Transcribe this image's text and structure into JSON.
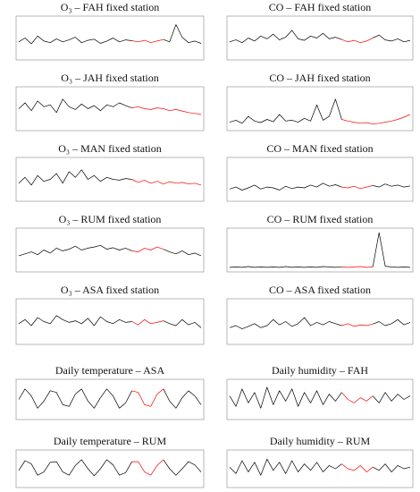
{
  "chart_data": [
    {
      "type": "line",
      "title": "O₃ – FAH fixed station",
      "ylim": [
        0,
        100
      ],
      "series": [
        {
          "color": "#000000",
          "values": [
            40,
            50,
            35,
            55,
            42,
            38,
            48,
            40,
            45,
            52,
            38,
            44,
            47,
            36,
            42,
            50,
            40,
            45,
            43,
            null,
            null,
            null,
            null,
            46,
            40,
            85,
            52,
            38,
            42,
            36
          ]
        },
        {
          "color": "#ff0000",
          "values": [
            null,
            null,
            null,
            null,
            null,
            null,
            null,
            null,
            null,
            null,
            null,
            null,
            null,
            null,
            null,
            null,
            null,
            null,
            43,
            40,
            44,
            38,
            42,
            46,
            null,
            null,
            null,
            null,
            null,
            null
          ]
        }
      ]
    },
    {
      "type": "line",
      "title": "CO – FAH fixed station",
      "ylim": [
        0,
        100
      ],
      "series": [
        {
          "color": "#000000",
          "values": [
            40,
            45,
            38,
            50,
            42,
            55,
            48,
            60,
            45,
            52,
            70,
            48,
            44,
            55,
            50,
            62,
            48,
            52,
            46,
            null,
            null,
            null,
            null,
            50,
            58,
            45,
            42,
            48,
            40,
            44
          ]
        },
        {
          "color": "#ff0000",
          "values": [
            null,
            null,
            null,
            null,
            null,
            null,
            null,
            null,
            null,
            null,
            null,
            null,
            null,
            null,
            null,
            null,
            null,
            null,
            46,
            40,
            44,
            38,
            42,
            50,
            null,
            null,
            null,
            null,
            null,
            null
          ]
        }
      ]
    },
    {
      "type": "line",
      "title": "O₃ – JAH fixed station",
      "ylim": [
        0,
        100
      ],
      "series": [
        {
          "color": "#000000",
          "values": [
            50,
            65,
            45,
            70,
            55,
            60,
            40,
            75,
            55,
            48,
            62,
            50,
            58,
            45,
            60,
            55,
            65,
            58,
            52,
            null,
            null,
            null,
            null,
            null,
            null,
            null,
            null,
            null,
            null,
            null
          ]
        },
        {
          "color": "#ff0000",
          "values": [
            null,
            null,
            null,
            null,
            null,
            null,
            null,
            null,
            null,
            null,
            null,
            null,
            null,
            null,
            null,
            null,
            null,
            null,
            52,
            55,
            50,
            48,
            52,
            50,
            45,
            48,
            44,
            40,
            38,
            35
          ]
        }
      ]
    },
    {
      "type": "line",
      "title": "CO – JAH fixed station",
      "ylim": [
        0,
        100
      ],
      "series": [
        {
          "color": "#000000",
          "values": [
            15,
            20,
            12,
            30,
            18,
            14,
            22,
            16,
            35,
            18,
            20,
            15,
            25,
            18,
            60,
            20,
            30,
            75,
            22,
            null,
            null,
            null,
            null,
            null,
            null,
            null,
            null,
            null,
            null,
            null
          ]
        },
        {
          "color": "#ff0000",
          "values": [
            null,
            null,
            null,
            null,
            null,
            null,
            null,
            null,
            null,
            null,
            null,
            null,
            null,
            null,
            null,
            null,
            null,
            null,
            22,
            18,
            15,
            12,
            14,
            10,
            12,
            15,
            18,
            22,
            28,
            35
          ]
        }
      ]
    },
    {
      "type": "line",
      "title": "O₃ – MAN fixed station",
      "ylim": [
        0,
        100
      ],
      "series": [
        {
          "color": "#000000",
          "values": [
            40,
            55,
            35,
            60,
            45,
            50,
            65,
            40,
            70,
            55,
            75,
            50,
            60,
            45,
            55,
            50,
            48,
            52,
            50,
            null,
            null,
            null,
            null,
            null,
            null,
            null,
            null,
            null,
            null,
            null
          ]
        },
        {
          "color": "#ff0000",
          "values": [
            null,
            null,
            null,
            null,
            null,
            null,
            null,
            null,
            null,
            null,
            null,
            null,
            null,
            null,
            null,
            null,
            null,
            null,
            50,
            42,
            48,
            40,
            45,
            38,
            44,
            40,
            42,
            38,
            40,
            35
          ]
        }
      ]
    },
    {
      "type": "line",
      "title": "CO – MAN fixed station",
      "ylim": [
        0,
        100
      ],
      "series": [
        {
          "color": "#000000",
          "values": [
            25,
            30,
            22,
            28,
            35,
            25,
            30,
            28,
            22,
            32,
            26,
            30,
            28,
            35,
            30,
            40,
            32,
            36,
            30,
            null,
            null,
            null,
            null,
            34,
            30,
            38,
            32,
            35,
            30,
            33
          ]
        },
        {
          "color": "#ff0000",
          "values": [
            null,
            null,
            null,
            null,
            null,
            null,
            null,
            null,
            null,
            null,
            null,
            null,
            null,
            null,
            null,
            null,
            null,
            null,
            30,
            28,
            32,
            26,
            30,
            34,
            null,
            null,
            null,
            null,
            null,
            null
          ]
        }
      ]
    },
    {
      "type": "line",
      "title": "O₃ – RUM fixed station",
      "ylim": [
        0,
        100
      ],
      "series": [
        {
          "color": "#000000",
          "values": [
            35,
            40,
            45,
            38,
            50,
            42,
            55,
            48,
            52,
            60,
            50,
            55,
            58,
            62,
            52,
            56,
            50,
            55,
            48,
            null,
            null,
            null,
            null,
            52,
            45,
            40,
            48,
            38,
            42,
            35
          ]
        },
        {
          "color": "#ff0000",
          "values": [
            null,
            null,
            null,
            null,
            null,
            null,
            null,
            null,
            null,
            null,
            null,
            null,
            null,
            null,
            null,
            null,
            null,
            null,
            48,
            45,
            55,
            50,
            58,
            52,
            null,
            null,
            null,
            null,
            null,
            null
          ]
        }
      ]
    },
    {
      "type": "line",
      "title": "CO – RUM fixed station",
      "ylim": [
        0,
        100
      ],
      "series": [
        {
          "color": "#000000",
          "values": [
            5,
            6,
            5,
            7,
            5,
            6,
            5,
            6,
            5,
            7,
            5,
            6,
            5,
            6,
            5,
            7,
            6,
            5,
            6,
            null,
            null,
            null,
            null,
            6,
            95,
            8,
            6,
            5,
            6,
            5
          ]
        },
        {
          "color": "#ff0000",
          "values": [
            null,
            null,
            null,
            null,
            null,
            null,
            null,
            null,
            null,
            null,
            null,
            null,
            null,
            null,
            null,
            null,
            null,
            null,
            6,
            5,
            6,
            7,
            5,
            6,
            null,
            null,
            null,
            null,
            null,
            null
          ]
        }
      ]
    },
    {
      "type": "line",
      "title": "O₃ – ASA fixed station",
      "ylim": [
        0,
        100
      ],
      "series": [
        {
          "color": "#000000",
          "values": [
            45,
            55,
            40,
            60,
            50,
            45,
            65,
            55,
            48,
            52,
            45,
            58,
            40,
            62,
            50,
            45,
            55,
            48,
            50,
            null,
            null,
            null,
            null,
            52,
            45,
            40,
            55,
            42,
            48,
            35
          ]
        },
        {
          "color": "#ff0000",
          "values": [
            null,
            null,
            null,
            null,
            null,
            null,
            null,
            null,
            null,
            null,
            null,
            null,
            null,
            null,
            null,
            null,
            null,
            null,
            50,
            42,
            55,
            45,
            48,
            52,
            null,
            null,
            null,
            null,
            null,
            null
          ]
        }
      ]
    },
    {
      "type": "line",
      "title": "CO – ASA fixed station",
      "ylim": [
        0,
        100
      ],
      "series": [
        {
          "color": "#000000",
          "values": [
            35,
            40,
            32,
            38,
            45,
            35,
            40,
            55,
            42,
            50,
            38,
            45,
            60,
            40,
            48,
            42,
            50,
            45,
            40,
            null,
            null,
            null,
            null,
            44,
            50,
            40,
            45,
            55,
            42,
            48
          ]
        },
        {
          "color": "#ff0000",
          "values": [
            null,
            null,
            null,
            null,
            null,
            null,
            null,
            null,
            null,
            null,
            null,
            null,
            null,
            null,
            null,
            null,
            null,
            null,
            40,
            45,
            38,
            42,
            40,
            44,
            null,
            null,
            null,
            null,
            null,
            null
          ]
        }
      ]
    },
    {
      "type": "line",
      "title": "Daily temperature – ASA",
      "ylim": [
        0,
        100
      ],
      "series": [
        {
          "color": "#000000",
          "values": [
            50,
            80,
            60,
            25,
            45,
            75,
            70,
            35,
            30,
            65,
            80,
            45,
            25,
            55,
            80,
            60,
            25,
            40,
            75,
            null,
            null,
            null,
            null,
            80,
            45,
            25,
            55,
            75,
            60,
            35
          ]
        },
        {
          "color": "#ff0000",
          "values": [
            null,
            null,
            null,
            null,
            null,
            null,
            null,
            null,
            null,
            null,
            null,
            null,
            null,
            null,
            null,
            null,
            null,
            null,
            75,
            70,
            35,
            30,
            65,
            80,
            null,
            null,
            null,
            null,
            null,
            null
          ]
        }
      ]
    },
    {
      "type": "line",
      "title": "Daily humidity – FAH",
      "ylim": [
        0,
        100
      ],
      "series": [
        {
          "color": "#000000",
          "values": [
            60,
            30,
            80,
            40,
            70,
            25,
            85,
            35,
            75,
            45,
            80,
            30,
            70,
            40,
            75,
            35,
            65,
            45,
            70,
            null,
            null,
            null,
            null,
            60,
            40,
            70,
            45,
            65,
            50,
            60
          ]
        },
        {
          "color": "#ff0000",
          "values": [
            null,
            null,
            null,
            null,
            null,
            null,
            null,
            null,
            null,
            null,
            null,
            null,
            null,
            null,
            null,
            null,
            null,
            null,
            70,
            50,
            40,
            55,
            45,
            60,
            null,
            null,
            null,
            null,
            null,
            null
          ]
        }
      ]
    },
    {
      "type": "line",
      "title": "Daily temperature – RUM",
      "ylim": [
        0,
        100
      ],
      "series": [
        {
          "color": "#000000",
          "values": [
            45,
            75,
            65,
            30,
            40,
            70,
            72,
            40,
            30,
            60,
            78,
            50,
            28,
            50,
            78,
            62,
            30,
            38,
            72,
            null,
            null,
            null,
            null,
            78,
            50,
            30,
            50,
            72,
            62,
            40
          ]
        },
        {
          "color": "#ff0000",
          "values": [
            null,
            null,
            null,
            null,
            null,
            null,
            null,
            null,
            null,
            null,
            null,
            null,
            null,
            null,
            null,
            null,
            null,
            null,
            72,
            72,
            40,
            30,
            60,
            78,
            null,
            null,
            null,
            null,
            null,
            null
          ]
        }
      ]
    },
    {
      "type": "line",
      "title": "Daily humidity – RUM",
      "ylim": [
        0,
        100
      ],
      "series": [
        {
          "color": "#000000",
          "values": [
            55,
            35,
            75,
            40,
            70,
            30,
            80,
            45,
            70,
            35,
            75,
            40,
            65,
            45,
            70,
            40,
            60,
            50,
            65,
            null,
            null,
            null,
            null,
            55,
            45,
            65,
            40,
            60,
            50,
            55
          ]
        },
        {
          "color": "#ff0000",
          "values": [
            null,
            null,
            null,
            null,
            null,
            null,
            null,
            null,
            null,
            null,
            null,
            null,
            null,
            null,
            null,
            null,
            null,
            null,
            65,
            50,
            45,
            60,
            40,
            55,
            null,
            null,
            null,
            null,
            null,
            null
          ]
        }
      ]
    }
  ]
}
